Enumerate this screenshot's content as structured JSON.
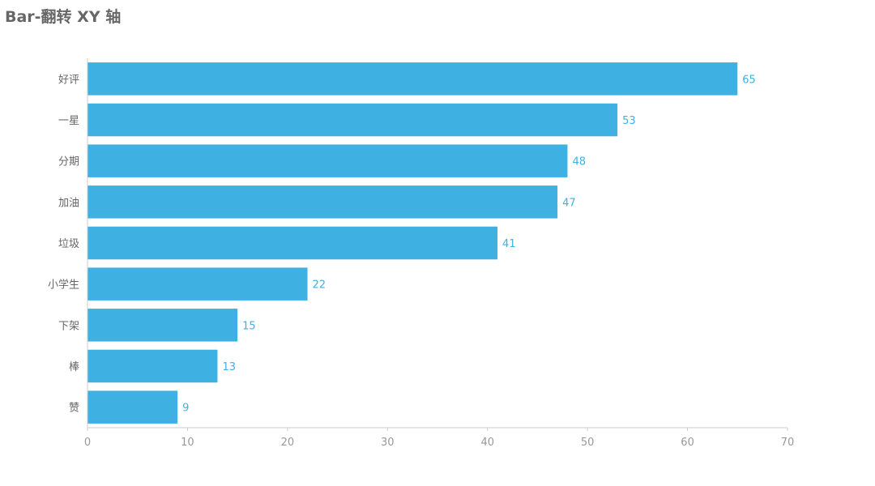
{
  "chart_data": {
    "type": "bar",
    "orientation": "horizontal",
    "title": "Bar-翻转 XY 轴",
    "categories": [
      "好评",
      "一星",
      "分期",
      "加油",
      "垃圾",
      "小学生",
      "下架",
      "棒",
      "赞"
    ],
    "values": [
      65,
      53,
      48,
      47,
      41,
      22,
      15,
      13,
      9
    ],
    "xlim": [
      0,
      70
    ],
    "x_ticks": [
      "0",
      "10",
      "20",
      "30",
      "40",
      "50",
      "60",
      "70"
    ],
    "xlabel": "",
    "ylabel": "",
    "bar_color": "#3eb1e2",
    "label_color": "#3eb1e2",
    "grid": false,
    "legend": false
  }
}
